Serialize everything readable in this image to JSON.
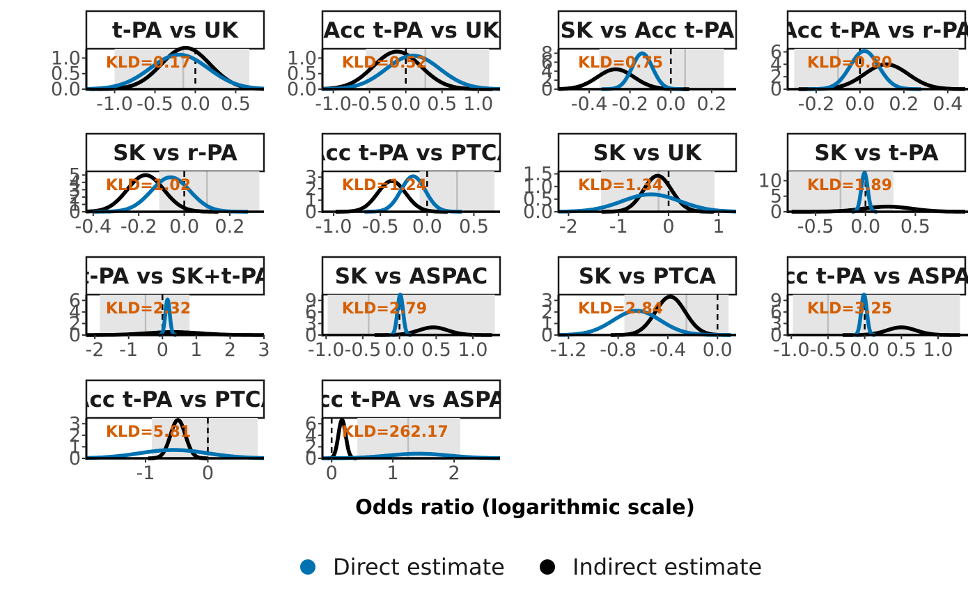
{
  "colors": {
    "direct": "#0072B2",
    "indirect": "#000000",
    "kld": "#D55E00",
    "interval_shade": "#e5e5e5",
    "interval_line": "#bfbfbf"
  },
  "chart_data": {
    "type": "line",
    "xlabel": "Odds ratio (logarithmic scale)",
    "legend": {
      "position": "bottom",
      "items": [
        {
          "label": "Direct estimate",
          "color": "#0072B2"
        },
        {
          "label": "Indirect estimate",
          "color": "#000000"
        }
      ]
    },
    "panels": [
      {
        "title": "t-PA vs UK",
        "kld": "KLD=0.17",
        "xlim": [
          -1.35,
          0.85
        ],
        "xticks": [
          "-1.0",
          "-0.5",
          "0.0",
          "0.5"
        ],
        "xtick_values": [
          -1.0,
          -0.5,
          0.0,
          0.5
        ],
        "ylim": [
          0,
          1.3
        ],
        "yticks": [
          "0.0",
          "0.5",
          "1.0"
        ],
        "ytick_values": [
          0,
          0.5,
          1.0
        ],
        "dashed_x": 0.0,
        "band": [
          -1.0,
          0.67
        ],
        "band_mid": -0.15,
        "direct": {
          "mean": -0.2,
          "sd": 0.36
        },
        "indirect": {
          "mean": -0.12,
          "sd": 0.3
        }
      },
      {
        "title": "Acc t-PA vs UK",
        "kld": "KLD=0.52",
        "xlim": [
          -1.15,
          1.3
        ],
        "xticks": [
          "-1.0",
          "-0.5",
          "0.0",
          "0.5",
          "1.0"
        ],
        "xtick_values": [
          -1.0,
          -0.5,
          0.0,
          0.5,
          1.0
        ],
        "ylim": [
          0,
          1.3
        ],
        "yticks": [
          "0.0",
          "0.5",
          "1.0"
        ],
        "ytick_values": [
          0,
          0.5,
          1.0
        ],
        "dashed_x": 0.0,
        "band": [
          -0.55,
          1.15
        ],
        "band_mid": 0.27,
        "direct": {
          "mean": 0.1,
          "sd": 0.37
        },
        "indirect": {
          "mean": -0.12,
          "sd": 0.33
        }
      },
      {
        "title": "SK vs Acc t-PA",
        "kld": "KLD=0.75",
        "xlim": [
          -0.55,
          0.32
        ],
        "xticks": [
          "-0.4",
          "-0.2",
          "0.0",
          "0.2"
        ],
        "xtick_values": [
          -0.4,
          -0.2,
          0.0,
          0.2
        ],
        "ylim": [
          0,
          9
        ],
        "yticks": [
          "0",
          "2",
          "4",
          "6",
          "8"
        ],
        "ytick_values": [
          0,
          2,
          4,
          6,
          8
        ],
        "dashed_x": 0.0,
        "band": [
          -0.35,
          0.26
        ],
        "band_mid": 0.07,
        "direct": {
          "mean": -0.14,
          "sd": 0.05
        },
        "indirect": {
          "mean": -0.27,
          "sd": 0.09
        }
      },
      {
        "title": "Acc t-PA vs r-PA",
        "kld": "KLD=0.80",
        "xlim": [
          -0.33,
          0.48
        ],
        "xticks": [
          "-0.2",
          "0.0",
          "0.2",
          "0.4"
        ],
        "xtick_values": [
          -0.2,
          0.0,
          0.2,
          0.4
        ],
        "ylim": [
          0,
          6.5
        ],
        "yticks": [
          "0",
          "2",
          "4",
          "6"
        ],
        "ytick_values": [
          0,
          2,
          4,
          6
        ],
        "dashed_x": 0.0,
        "band": [
          -0.3,
          0.45
        ],
        "band_mid": -0.1,
        "direct": {
          "mean": 0.02,
          "sd": 0.065
        },
        "indirect": {
          "mean": 0.12,
          "sd": 0.1
        }
      },
      {
        "title": "SK vs r-PA",
        "kld": "KLD=1.02",
        "xlim": [
          -0.43,
          0.35
        ],
        "xticks": [
          "-0.4",
          "-0.2",
          "0.0",
          "0.2"
        ],
        "xtick_values": [
          -0.4,
          -0.2,
          0.0,
          0.2
        ],
        "ylim": [
          0,
          5.5
        ],
        "yticks": [
          "0",
          "1",
          "2",
          "3",
          "4",
          "5"
        ],
        "ytick_values": [
          0,
          1,
          2,
          3,
          4,
          5
        ],
        "dashed_x": 0.0,
        "band": [
          -0.11,
          0.33
        ],
        "band_mid": 0.1,
        "direct": {
          "mean": -0.06,
          "sd": 0.085
        },
        "indirect": {
          "mean": -0.17,
          "sd": 0.08
        }
      },
      {
        "title": "Acc t-PA vs PTCA",
        "kld": "KLD=1.24",
        "xlim": [
          -1.12,
          0.78
        ],
        "xticks": [
          "-1.0",
          "-0.5",
          "0.0",
          "0.5"
        ],
        "xtick_values": [
          -1.0,
          -0.5,
          0.0,
          0.5
        ],
        "ylim": [
          0,
          3.5
        ],
        "yticks": [
          "0",
          "1",
          "2",
          "3"
        ],
        "ytick_values": [
          0,
          1,
          2,
          3
        ],
        "dashed_x": 0.0,
        "band": [
          -0.08,
          0.72
        ],
        "band_mid": 0.32,
        "direct": {
          "mean": -0.15,
          "sd": 0.13
        },
        "indirect": {
          "mean": -0.38,
          "sd": 0.15
        }
      },
      {
        "title": "SK vs UK",
        "kld": "KLD=1.34",
        "xlim": [
          -2.2,
          1.35
        ],
        "xticks": [
          "-2",
          "-1",
          "0",
          "1"
        ],
        "xtick_values": [
          -2,
          -1,
          0,
          1
        ],
        "ylim": [
          0,
          1.6
        ],
        "yticks": [
          "0.0",
          "0.5",
          "1.0",
          "1.5"
        ],
        "ytick_values": [
          0,
          0.5,
          1.0,
          1.5
        ],
        "dashed_x": 0.0,
        "band": [
          -1.35,
          0.92
        ],
        "band_mid": -0.2,
        "direct": {
          "mean": -0.35,
          "sd": 0.58
        },
        "indirect": {
          "mean": -0.22,
          "sd": 0.28
        }
      },
      {
        "title": "SK vs t-PA",
        "kld": "KLD=1.89",
        "xlim": [
          -0.78,
          1.0
        ],
        "xticks": [
          "-0.5",
          "0.0",
          "0.5"
        ],
        "xtick_values": [
          -0.5,
          0.0,
          0.5
        ],
        "ylim": [
          0,
          13
        ],
        "yticks": [
          "0",
          "5",
          "10"
        ],
        "ytick_values": [
          0,
          5,
          10
        ],
        "dashed_x": 0.0,
        "band": [
          -0.78,
          0.28
        ],
        "band_mid": -0.25,
        "direct": {
          "mean": -0.01,
          "sd": 0.032
        },
        "indirect": {
          "mean": 0.22,
          "sd": 0.24
        }
      },
      {
        "title": "t-PA vs SK+t-PA",
        "kld": "KLD=2.32",
        "xlim": [
          -2.25,
          3.0
        ],
        "xticks": [
          "-2",
          "-1",
          "0",
          "1",
          "2",
          "3"
        ],
        "xtick_values": [
          -2,
          -1,
          0,
          1,
          2,
          3
        ],
        "ylim": [
          0,
          7
        ],
        "yticks": [
          "0",
          "2",
          "4",
          "6"
        ],
        "ytick_values": [
          0,
          2,
          4,
          6
        ],
        "dashed_x": 0.0,
        "band": [
          -1.85,
          0.8
        ],
        "band_mid": -0.5,
        "direct": {
          "mean": 0.15,
          "sd": 0.065
        },
        "indirect": {
          "mean": 0.32,
          "sd": 0.78
        }
      },
      {
        "title": "SK vs ASPAC",
        "kld": "KLD=2.79",
        "xlim": [
          -1.05,
          1.37
        ],
        "xticks": [
          "-1.0",
          "-0.5",
          "0.0",
          "0.5",
          "1.0"
        ],
        "xtick_values": [
          -1.0,
          -0.5,
          0.0,
          0.5,
          1.0
        ],
        "ylim": [
          0,
          10.5
        ],
        "yticks": [
          "0",
          "3",
          "6",
          "9"
        ],
        "ytick_values": [
          0,
          3,
          6,
          9
        ],
        "dashed_x": 0.0,
        "band": [
          -0.98,
          1.3
        ],
        "band_mid": -0.42,
        "direct": {
          "mean": 0.01,
          "sd": 0.038
        },
        "indirect": {
          "mean": 0.46,
          "sd": 0.2
        }
      },
      {
        "title": "SK vs PTCA",
        "kld": "KLD=2.84",
        "xlim": [
          -1.28,
          0.15
        ],
        "xticks": [
          "-1.2",
          "-0.8",
          "-0.4",
          "0.0"
        ],
        "xtick_values": [
          -1.2,
          -0.8,
          -0.4,
          0.0
        ],
        "ylim": [
          0,
          3.5
        ],
        "yticks": [
          "0",
          "1",
          "2",
          "3"
        ],
        "ytick_values": [
          0,
          1,
          2,
          3
        ],
        "dashed_x": 0.0,
        "band": [
          -0.75,
          0.09
        ],
        "band_mid": -0.25,
        "direct": {
          "mean": -0.65,
          "sd": 0.19
        },
        "indirect": {
          "mean": -0.38,
          "sd": 0.12
        }
      },
      {
        "title": "Acc t-PA vs ASPAC",
        "kld": "KLD=3.25",
        "xlim": [
          -1.05,
          1.37
        ],
        "xticks": [
          "-1.0",
          "-0.5",
          "0.0",
          "0.5",
          "1.0"
        ],
        "xtick_values": [
          -1.0,
          -0.5,
          0.0,
          0.5,
          1.0
        ],
        "ylim": [
          0,
          10.5
        ],
        "yticks": [
          "0",
          "3",
          "6",
          "9"
        ],
        "ytick_values": [
          0,
          3,
          6,
          9
        ],
        "dashed_x": 0.0,
        "band": [
          -0.98,
          1.3
        ],
        "band_mid": -0.5,
        "direct": {
          "mean": -0.01,
          "sd": 0.038
        },
        "indirect": {
          "mean": 0.5,
          "sd": 0.2
        }
      },
      {
        "title": "Acc t-PA vs PTCA",
        "kld": "KLD=5.81",
        "xlim": [
          -1.95,
          0.9
        ],
        "xticks": [
          "-1",
          "0"
        ],
        "xtick_values": [
          -1,
          0
        ],
        "ylim": [
          0,
          3.5
        ],
        "yticks": [
          "0",
          "1",
          "2",
          "3"
        ],
        "ytick_values": [
          0,
          1,
          2,
          3
        ],
        "dashed_x": 0.0,
        "band": [
          -0.9,
          0.8
        ],
        "band_mid": 0.0,
        "direct": {
          "mean": -0.55,
          "sd": 0.55
        },
        "indirect": {
          "mean": -0.48,
          "sd": 0.12
        }
      },
      {
        "title": "Acc t-PA vs ASPAC",
        "kld": "KLD=262.17",
        "xlim": [
          -0.15,
          2.75
        ],
        "xticks": [
          "0",
          "1",
          "2"
        ],
        "xtick_values": [
          0,
          1,
          2
        ],
        "ylim": [
          0,
          7
        ],
        "yticks": [
          "0",
          "2",
          "4",
          "6"
        ],
        "ytick_values": [
          0,
          2,
          4,
          6
        ],
        "dashed_x": 0.0,
        "band": [
          0.42,
          2.1
        ],
        "band_mid": 1.25,
        "direct": {
          "mean": 1.42,
          "sd": 0.5
        },
        "indirect": {
          "mean": 0.17,
          "sd": 0.06
        }
      }
    ]
  }
}
